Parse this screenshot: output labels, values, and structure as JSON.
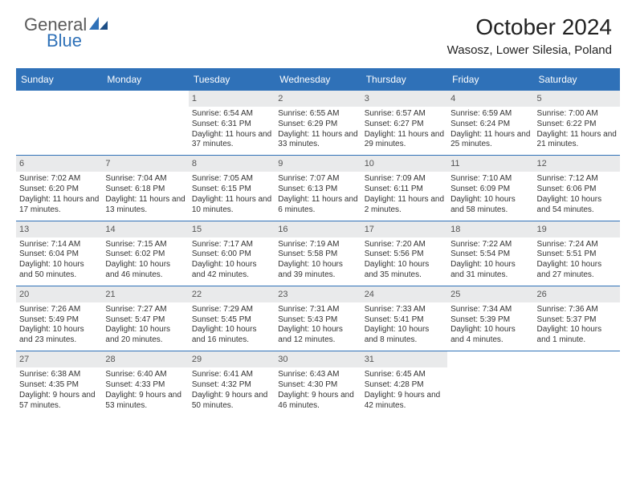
{
  "brand": {
    "general": "General",
    "blue": "Blue"
  },
  "title": "October 2024",
  "location": "Wasosz, Lower Silesia, Poland",
  "colors": {
    "accent": "#2f71b8",
    "daybar": "#e9eaeb",
    "text": "#333333"
  },
  "dayNames": [
    "Sunday",
    "Monday",
    "Tuesday",
    "Wednesday",
    "Thursday",
    "Friday",
    "Saturday"
  ],
  "weeks": [
    [
      {
        "empty": true
      },
      {
        "empty": true
      },
      {
        "day": "1",
        "sunrise": "Sunrise: 6:54 AM",
        "sunset": "Sunset: 6:31 PM",
        "daylight": "Daylight: 11 hours and 37 minutes."
      },
      {
        "day": "2",
        "sunrise": "Sunrise: 6:55 AM",
        "sunset": "Sunset: 6:29 PM",
        "daylight": "Daylight: 11 hours and 33 minutes."
      },
      {
        "day": "3",
        "sunrise": "Sunrise: 6:57 AM",
        "sunset": "Sunset: 6:27 PM",
        "daylight": "Daylight: 11 hours and 29 minutes."
      },
      {
        "day": "4",
        "sunrise": "Sunrise: 6:59 AM",
        "sunset": "Sunset: 6:24 PM",
        "daylight": "Daylight: 11 hours and 25 minutes."
      },
      {
        "day": "5",
        "sunrise": "Sunrise: 7:00 AM",
        "sunset": "Sunset: 6:22 PM",
        "daylight": "Daylight: 11 hours and 21 minutes."
      }
    ],
    [
      {
        "day": "6",
        "sunrise": "Sunrise: 7:02 AM",
        "sunset": "Sunset: 6:20 PM",
        "daylight": "Daylight: 11 hours and 17 minutes."
      },
      {
        "day": "7",
        "sunrise": "Sunrise: 7:04 AM",
        "sunset": "Sunset: 6:18 PM",
        "daylight": "Daylight: 11 hours and 13 minutes."
      },
      {
        "day": "8",
        "sunrise": "Sunrise: 7:05 AM",
        "sunset": "Sunset: 6:15 PM",
        "daylight": "Daylight: 11 hours and 10 minutes."
      },
      {
        "day": "9",
        "sunrise": "Sunrise: 7:07 AM",
        "sunset": "Sunset: 6:13 PM",
        "daylight": "Daylight: 11 hours and 6 minutes."
      },
      {
        "day": "10",
        "sunrise": "Sunrise: 7:09 AM",
        "sunset": "Sunset: 6:11 PM",
        "daylight": "Daylight: 11 hours and 2 minutes."
      },
      {
        "day": "11",
        "sunrise": "Sunrise: 7:10 AM",
        "sunset": "Sunset: 6:09 PM",
        "daylight": "Daylight: 10 hours and 58 minutes."
      },
      {
        "day": "12",
        "sunrise": "Sunrise: 7:12 AM",
        "sunset": "Sunset: 6:06 PM",
        "daylight": "Daylight: 10 hours and 54 minutes."
      }
    ],
    [
      {
        "day": "13",
        "sunrise": "Sunrise: 7:14 AM",
        "sunset": "Sunset: 6:04 PM",
        "daylight": "Daylight: 10 hours and 50 minutes."
      },
      {
        "day": "14",
        "sunrise": "Sunrise: 7:15 AM",
        "sunset": "Sunset: 6:02 PM",
        "daylight": "Daylight: 10 hours and 46 minutes."
      },
      {
        "day": "15",
        "sunrise": "Sunrise: 7:17 AM",
        "sunset": "Sunset: 6:00 PM",
        "daylight": "Daylight: 10 hours and 42 minutes."
      },
      {
        "day": "16",
        "sunrise": "Sunrise: 7:19 AM",
        "sunset": "Sunset: 5:58 PM",
        "daylight": "Daylight: 10 hours and 39 minutes."
      },
      {
        "day": "17",
        "sunrise": "Sunrise: 7:20 AM",
        "sunset": "Sunset: 5:56 PM",
        "daylight": "Daylight: 10 hours and 35 minutes."
      },
      {
        "day": "18",
        "sunrise": "Sunrise: 7:22 AM",
        "sunset": "Sunset: 5:54 PM",
        "daylight": "Daylight: 10 hours and 31 minutes."
      },
      {
        "day": "19",
        "sunrise": "Sunrise: 7:24 AM",
        "sunset": "Sunset: 5:51 PM",
        "daylight": "Daylight: 10 hours and 27 minutes."
      }
    ],
    [
      {
        "day": "20",
        "sunrise": "Sunrise: 7:26 AM",
        "sunset": "Sunset: 5:49 PM",
        "daylight": "Daylight: 10 hours and 23 minutes."
      },
      {
        "day": "21",
        "sunrise": "Sunrise: 7:27 AM",
        "sunset": "Sunset: 5:47 PM",
        "daylight": "Daylight: 10 hours and 20 minutes."
      },
      {
        "day": "22",
        "sunrise": "Sunrise: 7:29 AM",
        "sunset": "Sunset: 5:45 PM",
        "daylight": "Daylight: 10 hours and 16 minutes."
      },
      {
        "day": "23",
        "sunrise": "Sunrise: 7:31 AM",
        "sunset": "Sunset: 5:43 PM",
        "daylight": "Daylight: 10 hours and 12 minutes."
      },
      {
        "day": "24",
        "sunrise": "Sunrise: 7:33 AM",
        "sunset": "Sunset: 5:41 PM",
        "daylight": "Daylight: 10 hours and 8 minutes."
      },
      {
        "day": "25",
        "sunrise": "Sunrise: 7:34 AM",
        "sunset": "Sunset: 5:39 PM",
        "daylight": "Daylight: 10 hours and 4 minutes."
      },
      {
        "day": "26",
        "sunrise": "Sunrise: 7:36 AM",
        "sunset": "Sunset: 5:37 PM",
        "daylight": "Daylight: 10 hours and 1 minute."
      }
    ],
    [
      {
        "day": "27",
        "sunrise": "Sunrise: 6:38 AM",
        "sunset": "Sunset: 4:35 PM",
        "daylight": "Daylight: 9 hours and 57 minutes."
      },
      {
        "day": "28",
        "sunrise": "Sunrise: 6:40 AM",
        "sunset": "Sunset: 4:33 PM",
        "daylight": "Daylight: 9 hours and 53 minutes."
      },
      {
        "day": "29",
        "sunrise": "Sunrise: 6:41 AM",
        "sunset": "Sunset: 4:32 PM",
        "daylight": "Daylight: 9 hours and 50 minutes."
      },
      {
        "day": "30",
        "sunrise": "Sunrise: 6:43 AM",
        "sunset": "Sunset: 4:30 PM",
        "daylight": "Daylight: 9 hours and 46 minutes."
      },
      {
        "day": "31",
        "sunrise": "Sunrise: 6:45 AM",
        "sunset": "Sunset: 4:28 PM",
        "daylight": "Daylight: 9 hours and 42 minutes."
      },
      {
        "empty": true
      },
      {
        "empty": true
      }
    ]
  ]
}
